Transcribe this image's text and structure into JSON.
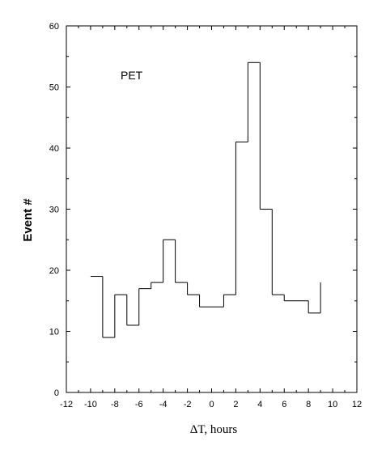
{
  "chart_data": {
    "type": "line",
    "style": "step-histogram",
    "annotation": "PET",
    "xlabel": "ΔT, hours",
    "ylabel": "Event #",
    "xlim": [
      -12,
      12
    ],
    "ylim": [
      0,
      60
    ],
    "x_ticks": [
      -12,
      -10,
      -8,
      -6,
      -4,
      -2,
      0,
      2,
      4,
      6,
      8,
      10,
      12
    ],
    "x_tick_labels": [
      "-12",
      "-10",
      "-8",
      "-6",
      "-4",
      "-2",
      "0",
      "2",
      "4",
      "6",
      "8",
      "10",
      "12"
    ],
    "y_ticks": [
      0,
      10,
      20,
      30,
      40,
      50,
      60
    ],
    "y_tick_labels": [
      "0",
      "10",
      "20",
      "30",
      "40",
      "50",
      "60"
    ],
    "grid": false,
    "series": [
      {
        "bins": [
          {
            "x_start": -10,
            "x_end": -9,
            "y": 19
          },
          {
            "x_start": -9,
            "x_end": -8,
            "y": 9
          },
          {
            "x_start": -8,
            "x_end": -7,
            "y": 16
          },
          {
            "x_start": -7,
            "x_end": -6,
            "y": 11
          },
          {
            "x_start": -6,
            "x_end": -5,
            "y": 17
          },
          {
            "x_start": -5,
            "x_end": -4,
            "y": 18
          },
          {
            "x_start": -4,
            "x_end": -3,
            "y": 25
          },
          {
            "x_start": -3,
            "x_end": -2,
            "y": 18
          },
          {
            "x_start": -2,
            "x_end": -1,
            "y": 16
          },
          {
            "x_start": -1,
            "x_end": 1,
            "y": 14
          },
          {
            "x_start": 1,
            "x_end": 2,
            "y": 16
          },
          {
            "x_start": 2,
            "x_end": 3,
            "y": 41
          },
          {
            "x_start": 3,
            "x_end": 4,
            "y": 54
          },
          {
            "x_start": 4,
            "x_end": 5,
            "y": 30
          },
          {
            "x_start": 5,
            "x_end": 6,
            "y": 16
          },
          {
            "x_start": 6,
            "x_end": 8,
            "y": 15
          },
          {
            "x_start": 8,
            "x_end": 9,
            "y": 13
          }
        ],
        "end_y": 18
      }
    ]
  }
}
